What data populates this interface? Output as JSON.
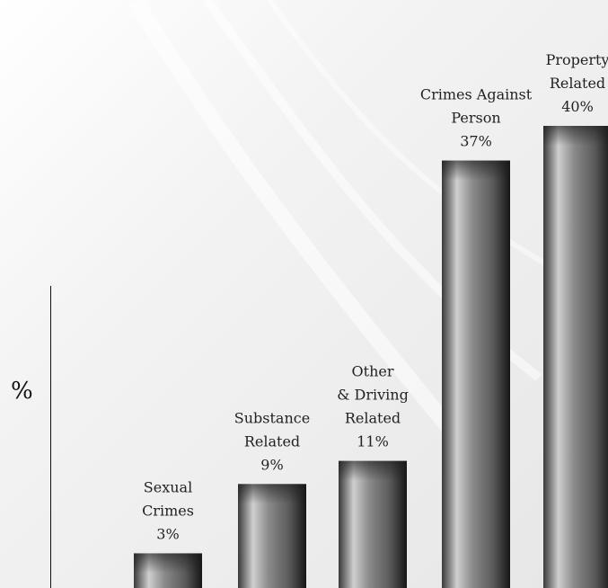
{
  "chart_data": {
    "type": "bar",
    "title": "",
    "xlabel": "",
    "ylabel": "%",
    "ylim": [
      0,
      40
    ],
    "categories": [
      "Sexual Crimes",
      "Substance Related",
      "Other & Driving Related",
      "Crimes Against Person",
      "Property Related"
    ],
    "category_lines": [
      [
        "Sexual",
        "Crimes"
      ],
      [
        "Substance",
        "Related"
      ],
      [
        "Other",
        "& Driving",
        "Related"
      ],
      [
        "Crimes Against",
        "Person"
      ],
      [
        "Property",
        "Related"
      ]
    ],
    "values": [
      3,
      9,
      11,
      37,
      40
    ],
    "value_labels": [
      "3%",
      "9%",
      "11%",
      "37%",
      "40%"
    ],
    "grid": false,
    "legend": "none",
    "colors": {
      "bar_dark": "#2b2b2b",
      "bar_light": "#d6d6d6",
      "text": "#222222"
    }
  }
}
